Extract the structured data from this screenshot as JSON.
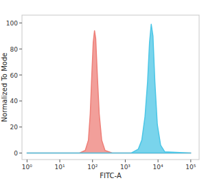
{
  "chart_data": {
    "type": "area",
    "log": "x",
    "grid": false,
    "x_label": "FITC-A",
    "y_label": "Normalized To Mode",
    "xlim": [
      0.7,
      180000
    ],
    "ylim": [
      -5,
      106
    ],
    "xticks": [
      {
        "value": 1,
        "label": "10⁰"
      },
      {
        "value": 10,
        "label": "10¹"
      },
      {
        "value": 100,
        "label": "10²"
      },
      {
        "value": 1000,
        "label": "10³"
      },
      {
        "value": 10000,
        "label": "10⁴"
      },
      {
        "value": 100000,
        "label": "10⁵"
      }
    ],
    "yticks": [
      0,
      20,
      40,
      60,
      80,
      100
    ],
    "series": [
      {
        "color": "#ee7f78",
        "x": [
          1,
          40,
          60,
          75,
          85,
          95,
          105,
          115,
          125,
          140,
          160,
          190,
          240,
          400,
          100000
        ],
        "values": [
          0,
          0,
          2,
          10,
          30,
          60,
          85,
          94,
          88,
          60,
          30,
          10,
          2,
          0,
          0
        ]
      },
      {
        "color": "#4cc6e6",
        "x": [
          1,
          1500,
          2500,
          3200,
          4000,
          4800,
          5500,
          6200,
          7000,
          8000,
          9500,
          12000,
          16000,
          100000
        ],
        "values": [
          0,
          0,
          3,
          10,
          28,
          55,
          85,
          99,
          90,
          55,
          22,
          6,
          1,
          0
        ]
      }
    ]
  }
}
